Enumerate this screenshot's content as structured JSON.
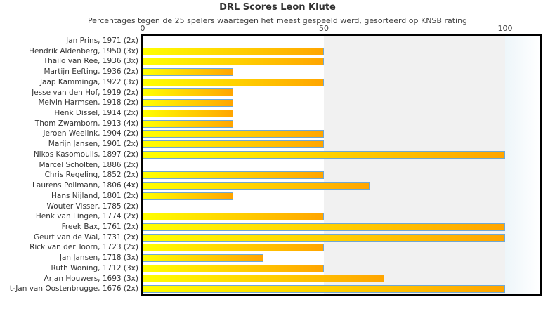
{
  "chart_data": {
    "type": "bar",
    "orientation": "horizontal",
    "title": "DRL Scores Leon Klute",
    "subtitle": "Percentages tegen de 25 spelers waartegen het meest gespeeld werd, gesorteerd op KNSB rating",
    "xlabel": "",
    "ylabel": "",
    "xlim": [
      0,
      110
    ],
    "x_ticks": [
      0,
      50,
      100
    ],
    "grid": "off",
    "legend": "none",
    "categories": [
      "Jan Prins, 1971 (2x)",
      "Hendrik Aldenberg, 1950 (3x)",
      "Thailo van Ree, 1936 (3x)",
      "Martijn Eefting, 1936 (2x)",
      "Jaap Kamminga, 1922 (3x)",
      "Jesse van den Hof, 1919 (2x)",
      "Melvin Harmsen, 1918 (2x)",
      "Henk Dissel, 1914 (2x)",
      "Thom Zwamborn, 1913 (4x)",
      "Jeroen Weelink, 1904 (2x)",
      "Marijn Jansen, 1901 (2x)",
      "Nikos Kasomoulis, 1897 (2x)",
      "Marcel Scholten, 1886 (2x)",
      "Chris Regeling, 1852 (2x)",
      "Laurens Pollmann, 1806 (4x)",
      "Hans Nijland, 1801 (2x)",
      "Wouter Visser, 1785 (2x)",
      "Henk van Lingen, 1774 (2x)",
      "Freek Bax, 1761 (2x)",
      "Geurt van de Wal, 1731 (2x)",
      "Rick van der Toorn, 1723 (2x)",
      "Jan Jansen, 1718 (3x)",
      "Ruth Woning, 1712 (3x)",
      "Arjan Houwers, 1693 (3x)",
      "t-Jan van Oostenbrugge, 1676 (2x)"
    ],
    "values": [
      0,
      50,
      50,
      25,
      50,
      25,
      25,
      25,
      25,
      50,
      50,
      100,
      0,
      50,
      62.5,
      25,
      0,
      50,
      100,
      100,
      50,
      33.3,
      50,
      66.7,
      100
    ],
    "colors": {
      "bar_gradient_start": "#FFFF00",
      "bar_gradient_end": "#FFA500",
      "bar_border": "#6FA8D4",
      "band_0_50": "#FFFFFF",
      "band_50_100": "#F1F1F1",
      "band_over_100_start": "#EEF6FA",
      "band_over_100_end": "#FFFFFF",
      "plot_border": "#000000",
      "text": "#333333"
    }
  }
}
